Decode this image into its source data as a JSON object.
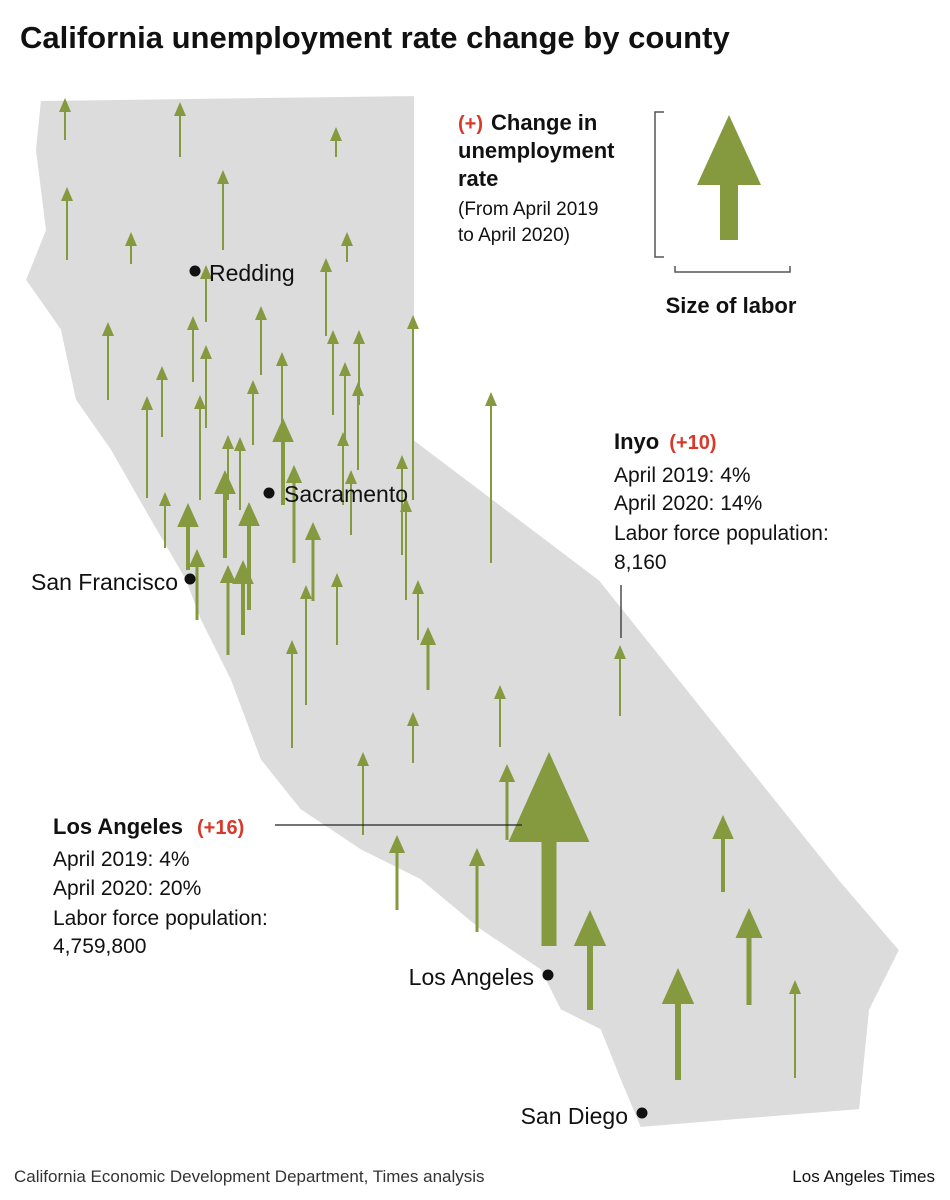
{
  "title": "California unemployment rate change by county",
  "legend": {
    "plus": "(+)",
    "heading": [
      "Change in",
      "unemployment",
      "rate"
    ],
    "note": [
      "(From April 2019",
      "to April 2020)"
    ],
    "size_label": "Size of labor"
  },
  "cities": [
    "Redding",
    "Sacramento",
    "San Francisco",
    "Los Angeles",
    "San Diego"
  ],
  "callouts": [
    {
      "name": "Inyo",
      "change": "(+10)",
      "lines": [
        "April 2019: 4%",
        "April 2020: 14%",
        "Labor force population:",
        "8,160"
      ]
    },
    {
      "name": "Los Angeles",
      "change": "(+16)",
      "lines": [
        "April 2019: 4%",
        "April 2020: 20%",
        "Labor force population:",
        "4,759,800"
      ]
    }
  ],
  "source": "California Economic Development Department, Times analysis",
  "credit": "Los Angeles Times"
}
